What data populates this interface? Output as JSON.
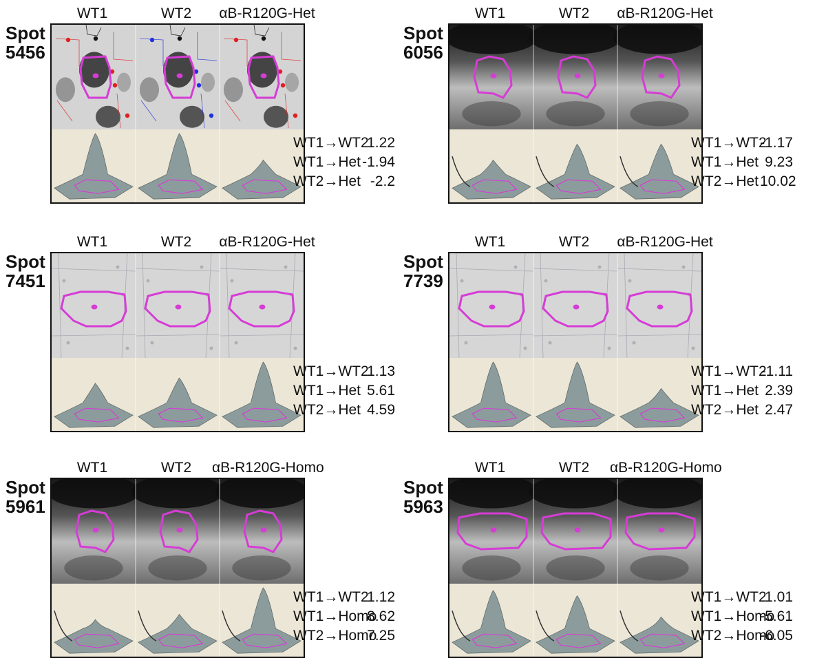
{
  "panels": [
    {
      "spot_word": "Spot",
      "spot_number": "5456",
      "columns": [
        "WT1",
        "WT2",
        "αB-R120G-Het"
      ],
      "gel_style": "grid",
      "stats": [
        {
          "label": "WT1→WT2",
          "value": "1.22"
        },
        {
          "label": "WT1→Het",
          "value": "-1.94"
        },
        {
          "label": "WT2→Het",
          "value": "-2.2"
        }
      ]
    },
    {
      "spot_word": "Spot",
      "spot_number": "6056",
      "columns": [
        "WT1",
        "WT2",
        "αB-R120G-Het"
      ],
      "gel_style": "dark",
      "stats": [
        {
          "label": "WT1→WT2",
          "value": "-1.17"
        },
        {
          "label": "WT1→Het",
          "value": "9.23"
        },
        {
          "label": "WT2→Het",
          "value": "10.02"
        }
      ]
    },
    {
      "spot_word": "Spot",
      "spot_number": "7451",
      "columns": [
        "WT1",
        "WT2",
        "αB-R120G-Het"
      ],
      "gel_style": "light",
      "stats": [
        {
          "label": "WT1→WT2",
          "value": "1.13"
        },
        {
          "label": "WT1→Het",
          "value": "5.61"
        },
        {
          "label": "WT2→Het",
          "value": "4.59"
        }
      ]
    },
    {
      "spot_word": "Spot",
      "spot_number": "7739",
      "columns": [
        "WT1",
        "WT2",
        "αB-R120G-Het"
      ],
      "gel_style": "light",
      "stats": [
        {
          "label": "WT1→WT2",
          "value": "-1.11"
        },
        {
          "label": "WT1→Het",
          "value": "2.39"
        },
        {
          "label": "WT2→Het",
          "value": "2.47"
        }
      ]
    },
    {
      "spot_word": "Spot",
      "spot_number": "5961",
      "columns": [
        "WT1",
        "WT2",
        "αB-R120G-Homo"
      ],
      "gel_style": "dark",
      "stats": [
        {
          "label": "WT1→WT2",
          "value": "1.12"
        },
        {
          "label": "WT1→Homo",
          "value": "8.62"
        },
        {
          "label": "WT2→Homo",
          "value": "7.25"
        }
      ]
    },
    {
      "spot_word": "Spot",
      "spot_number": "5963",
      "columns": [
        "WT1",
        "WT2",
        "αB-R120G-Homo"
      ],
      "gel_style": "dark",
      "stats": [
        {
          "label": "WT1→WT2",
          "value": "1.01"
        },
        {
          "label": "WT1→Homo",
          "value": "-5.61"
        },
        {
          "label": "WT2→Homo",
          "value": "-6.05"
        }
      ]
    }
  ],
  "colors": {
    "outline": "#d63cd6",
    "frame_bg": "#ece6d6",
    "surface": "#8c9c9c",
    "marker_red": "#e02020",
    "marker_blue": "#2030e0",
    "marker_black": "#111111"
  }
}
